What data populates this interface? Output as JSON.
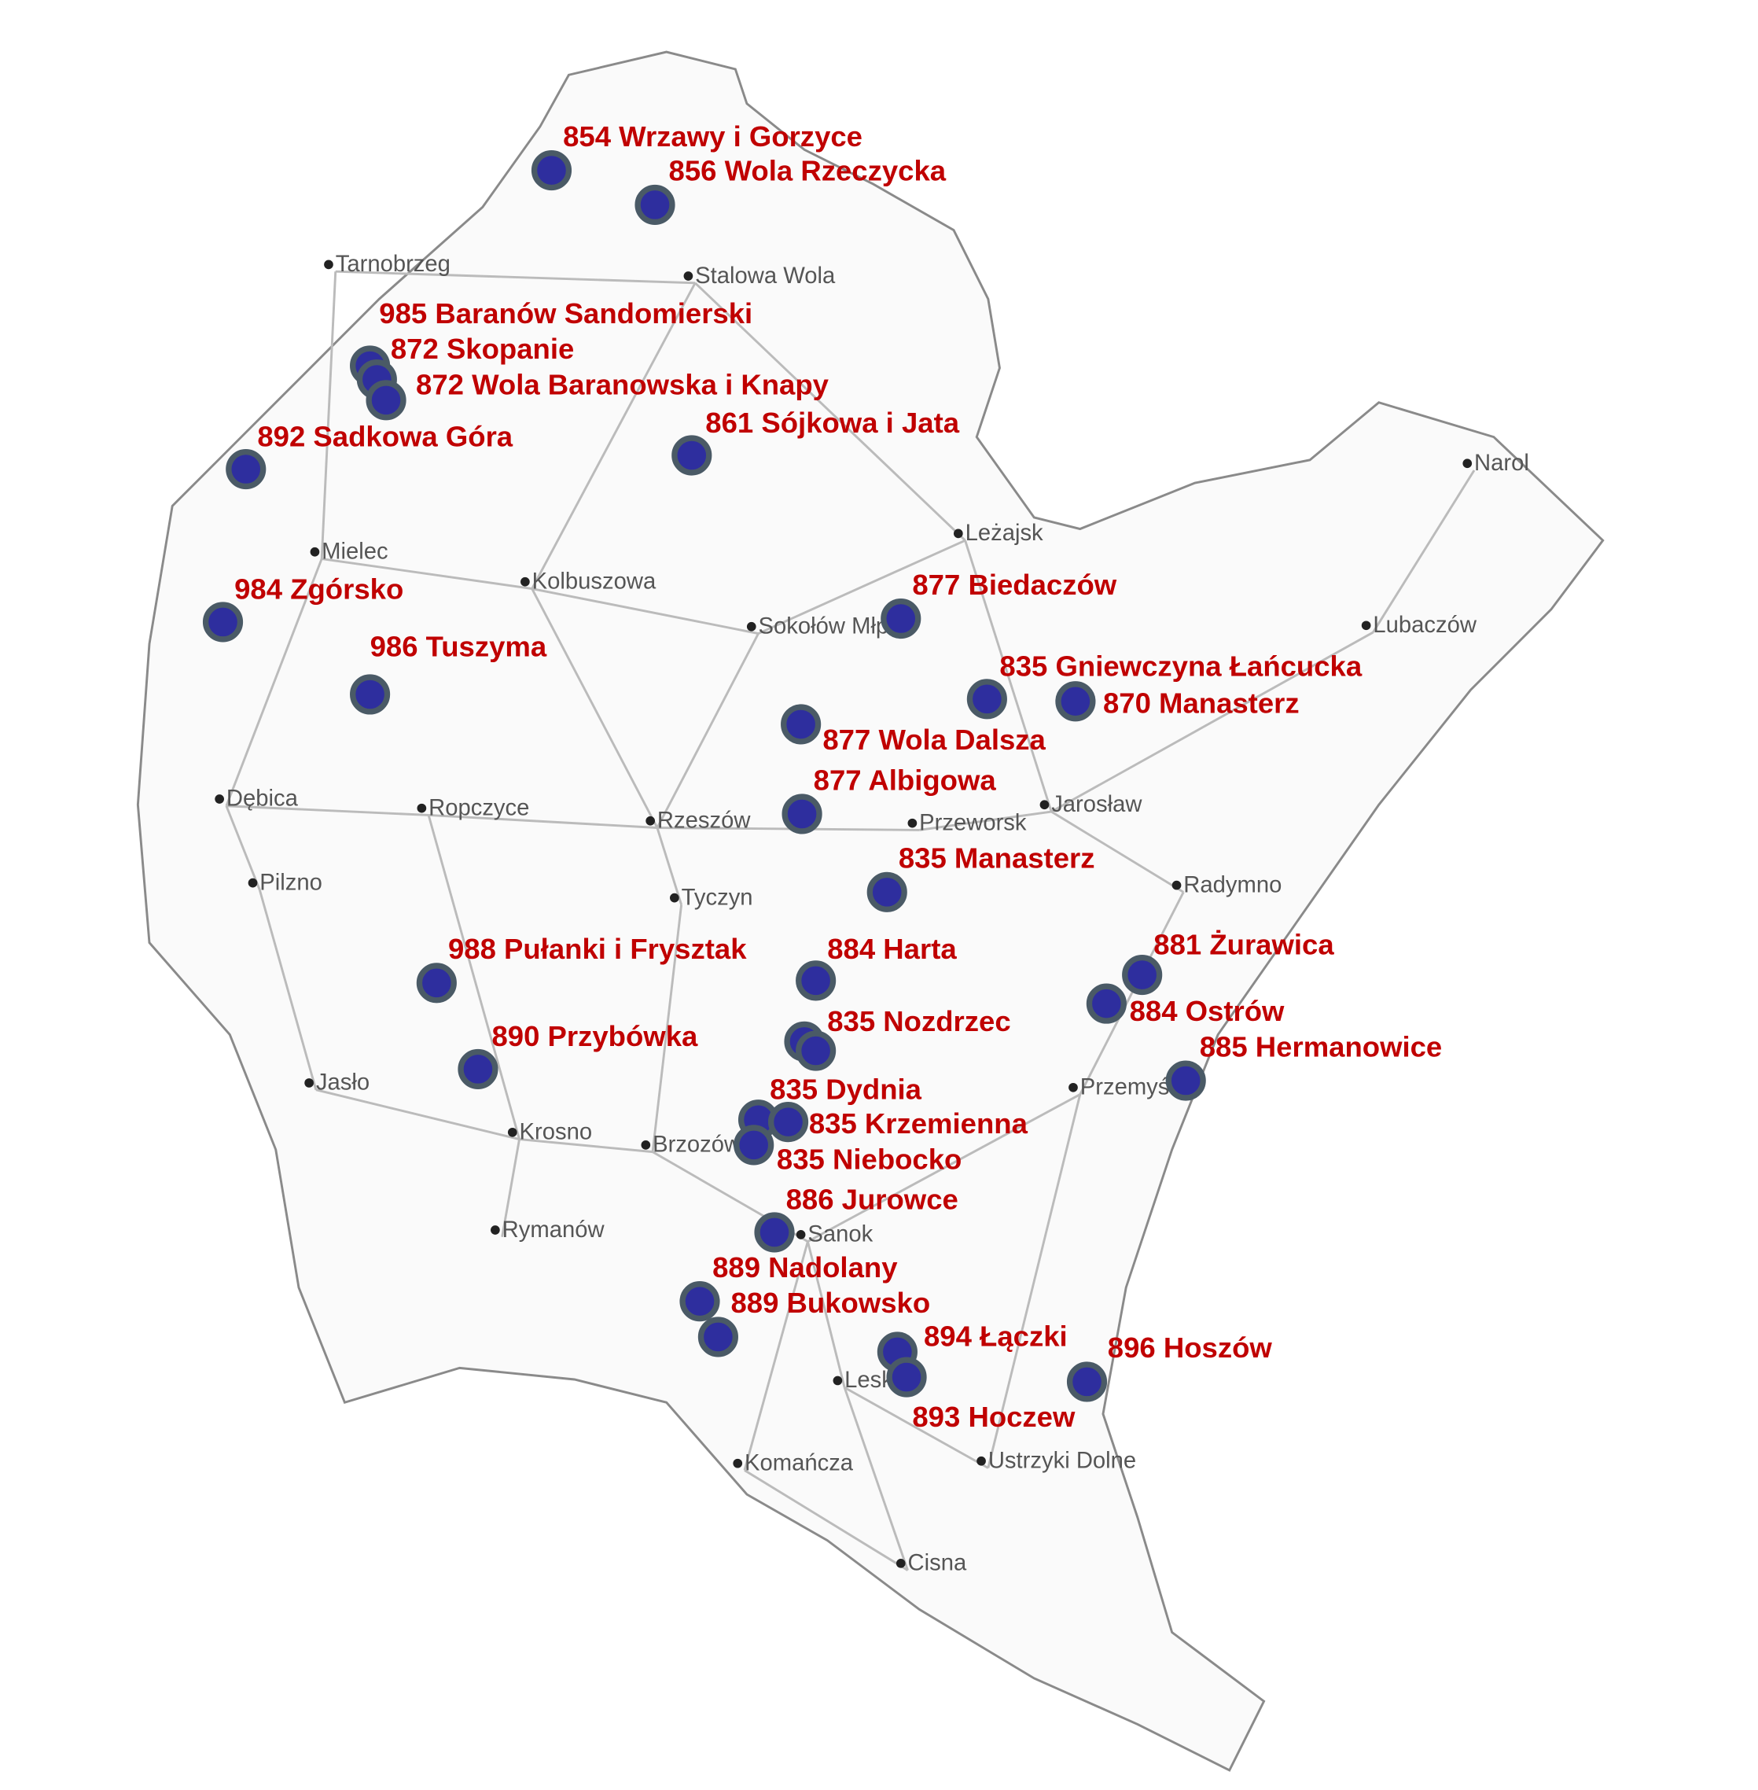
{
  "colors": {
    "marker_fill": "#2e2e9e",
    "marker_border": "#4a5a66",
    "label": "#c00000",
    "city": "#555555",
    "border": "#8a8a8a",
    "road": "#bbbbbb"
  },
  "cities": [
    "Tarnobrzeg",
    "Stalowa Wola",
    "Mielec",
    "Kolbuszowa",
    "Sokołów Młp.",
    "Leżajsk",
    "Narol",
    "Lubaczów",
    "Dębica",
    "Ropczyce",
    "Rzeszów",
    "Przeworsk",
    "Jarosław",
    "Pilzno",
    "Tyczyn",
    "Radymno",
    "Jasło",
    "Krosno",
    "Brzozów",
    "Przemyśl",
    "Sanok",
    "Rymanów",
    "Lesko",
    "Ustrzyki Dolne",
    "Komańcza",
    "Cisna"
  ],
  "sites": [
    "854 Wrzawy i Gorzyce",
    "856 Wola Rzeczycka",
    "985 Baranów Sandomierski",
    "872 Skopanie",
    "872 Wola Baranowska i Knapy",
    "892 Sadkowa Góra",
    "861 Sójkowa i Jata",
    "984 Zgórsko",
    "877 Biedaczów",
    "986 Tuszyma",
    "835 Gniewczyna Łańcucka",
    "870 Manasterz",
    "877 Wola Dalsza",
    "877 Albigowa",
    "835 Manasterz",
    "881 Żurawica",
    "988 Pułanki i Frysztak",
    "884 Harta",
    "884 Ostrów",
    "835 Nozdrzec",
    "885 Hermanowice",
    "890 Przybówka",
    "835 Dydnia",
    "835 Krzemienna",
    "835 Niebocko",
    "886 Jurowce",
    "889 Nadolany",
    "889 Bukowsko",
    "894 Łączki",
    "893 Hoczew",
    "896 Hoszów"
  ]
}
